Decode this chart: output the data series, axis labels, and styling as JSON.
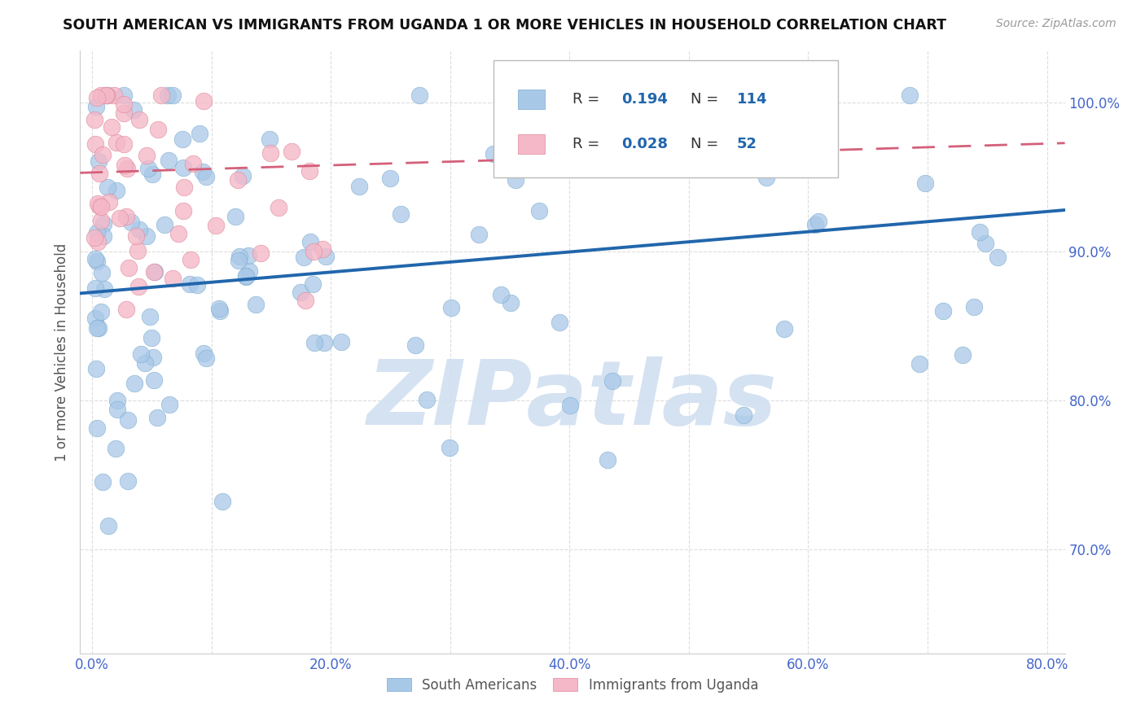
{
  "title": "SOUTH AMERICAN VS IMMIGRANTS FROM UGANDA 1 OR MORE VEHICLES IN HOUSEHOLD CORRELATION CHART",
  "source": "Source: ZipAtlas.com",
  "ylabel": "1 or more Vehicles in Household",
  "xlim": [
    -0.01,
    0.815
  ],
  "ylim": [
    0.63,
    1.035
  ],
  "xtick_vals": [
    0.0,
    0.1,
    0.2,
    0.3,
    0.4,
    0.5,
    0.6,
    0.7,
    0.8
  ],
  "xtick_labels": [
    "0.0%",
    "",
    "20.0%",
    "",
    "40.0%",
    "",
    "60.0%",
    "",
    "80.0%"
  ],
  "ytick_vals": [
    0.7,
    0.8,
    0.9,
    1.0
  ],
  "ytick_labels": [
    "70.0%",
    "80.0%",
    "90.0%",
    "100.0%"
  ],
  "blue_color": "#a8c8e8",
  "blue_edge_color": "#7aabce",
  "blue_line_color": "#2166ac",
  "pink_color": "#f4b8c8",
  "pink_edge_color": "#e08898",
  "pink_line_color": "#d4607a",
  "legend_r_blue": "0.194",
  "legend_n_blue": "114",
  "legend_r_pink": "0.028",
  "legend_n_pink": "52",
  "watermark": "ZIPatlas",
  "watermark_color": "#d0dff0",
  "blue_line_y0": 0.872,
  "blue_line_y1": 0.928,
  "pink_line_y0": 0.953,
  "pink_line_y1": 0.973,
  "background_color": "#ffffff",
  "grid_color": "#dddddd",
  "tick_color": "#4466cc",
  "label_color": "#555555"
}
